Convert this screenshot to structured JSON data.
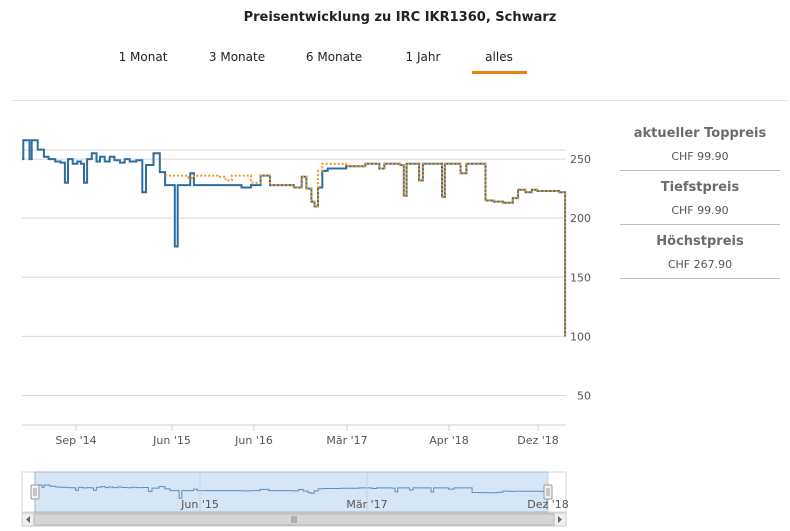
{
  "title": "Preisentwicklung zu IRC IKR1360, Schwarz",
  "tabs": [
    {
      "label": "1 Monat",
      "active": false
    },
    {
      "label": "3 Monate",
      "active": false
    },
    {
      "label": "6 Monate",
      "active": false
    },
    {
      "label": "1 Jahr",
      "active": false
    },
    {
      "label": "alles",
      "active": true
    }
  ],
  "colors": {
    "accent": "#e8820c",
    "series_blue": "#2b6f9e",
    "series_orange": "#f7941d",
    "navigator_fill": "#d6e6f5"
  },
  "panel": [
    {
      "heading": "aktueller Toppreis",
      "value": "CHF 99.90"
    },
    {
      "heading": "Tiefstpreis",
      "value": "CHF 99.90"
    },
    {
      "heading": "Höchstpreis",
      "value": "CHF 267.90"
    }
  ],
  "chart_data": {
    "type": "line",
    "title": "",
    "xlabel": "",
    "ylabel": "",
    "ylim": [
      25,
      300
    ],
    "yticks": [
      250,
      200,
      150,
      100,
      50
    ],
    "xticks": [
      "Sep '14",
      "Jun '15",
      "Jun '16",
      "Mär '17",
      "Apr '18",
      "Dez '18"
    ],
    "x_range": [
      "2014-05-01",
      "2019-02-01"
    ],
    "grid": true,
    "legend": "none",
    "series": [
      {
        "style": "step",
        "color": "#2b6f9e",
        "points": [
          [
            "2014-05-01",
            250
          ],
          [
            "2014-05-05",
            266
          ],
          [
            "2014-05-25",
            250
          ],
          [
            "2014-06-01",
            266
          ],
          [
            "2014-06-20",
            258
          ],
          [
            "2014-07-10",
            252
          ],
          [
            "2014-07-25",
            250
          ],
          [
            "2014-08-15",
            248
          ],
          [
            "2014-09-01",
            247
          ],
          [
            "2014-09-15",
            230
          ],
          [
            "2014-09-25",
            250
          ],
          [
            "2014-10-10",
            246
          ],
          [
            "2014-10-25",
            248
          ],
          [
            "2014-11-05",
            246
          ],
          [
            "2014-11-15",
            230
          ],
          [
            "2014-11-25",
            250
          ],
          [
            "2014-12-10",
            255
          ],
          [
            "2014-12-25",
            248
          ],
          [
            "2015-01-05",
            252
          ],
          [
            "2015-01-20",
            248
          ],
          [
            "2015-02-05",
            252
          ],
          [
            "2015-02-20",
            249
          ],
          [
            "2015-03-10",
            247
          ],
          [
            "2015-03-25",
            250
          ],
          [
            "2015-04-10",
            248
          ],
          [
            "2015-05-01",
            249
          ],
          [
            "2015-05-20",
            222
          ],
          [
            "2015-06-01",
            245
          ],
          [
            "2015-06-25",
            255
          ],
          [
            "2015-07-15",
            239
          ],
          [
            "2015-08-01",
            228
          ],
          [
            "2015-09-01",
            176
          ],
          [
            "2015-09-10",
            228
          ],
          [
            "2015-10-20",
            238
          ],
          [
            "2015-11-01",
            228
          ],
          [
            "2015-12-01",
            228
          ],
          [
            "2016-01-01",
            228
          ],
          [
            "2016-02-01",
            228
          ],
          [
            "2016-03-01",
            228
          ],
          [
            "2016-04-01",
            226
          ],
          [
            "2016-05-01",
            228
          ],
          [
            "2016-06-01",
            236
          ],
          [
            "2016-07-01",
            228
          ],
          [
            "2016-08-01",
            228
          ],
          [
            "2016-09-15",
            226
          ],
          [
            "2016-10-10",
            235
          ],
          [
            "2016-10-25",
            225
          ],
          [
            "2016-11-10",
            214
          ],
          [
            "2016-11-20",
            210
          ],
          [
            "2016-12-01",
            226
          ],
          [
            "2016-12-15",
            240
          ],
          [
            "2017-01-01",
            242
          ],
          [
            "2017-03-01",
            244
          ],
          [
            "2017-05-01",
            246
          ],
          [
            "2017-06-15",
            242
          ],
          [
            "2017-07-01",
            246
          ],
          [
            "2017-08-20",
            245
          ],
          [
            "2017-09-01",
            219
          ],
          [
            "2017-09-10",
            246
          ],
          [
            "2017-10-20",
            232
          ],
          [
            "2017-11-01",
            246
          ],
          [
            "2017-12-01",
            246
          ],
          [
            "2018-01-01",
            218
          ],
          [
            "2018-01-10",
            246
          ],
          [
            "2018-02-01",
            246
          ],
          [
            "2018-03-01",
            238
          ],
          [
            "2018-03-20",
            246
          ],
          [
            "2018-04-15",
            246
          ],
          [
            "2018-05-20",
            215
          ],
          [
            "2018-06-15",
            214
          ],
          [
            "2018-07-15",
            213
          ],
          [
            "2018-08-15",
            217
          ],
          [
            "2018-09-01",
            224
          ],
          [
            "2018-09-25",
            222
          ],
          [
            "2018-10-15",
            224
          ],
          [
            "2018-11-01",
            223
          ],
          [
            "2018-12-01",
            223
          ],
          [
            "2018-12-20",
            223
          ],
          [
            "2019-01-10",
            222
          ],
          [
            "2019-01-28",
            222
          ],
          [
            "2019-01-29",
            100
          ]
        ]
      },
      {
        "style": "step",
        "color": "#f7941d",
        "dashed": true,
        "points": [
          [
            "2015-08-01",
            236
          ],
          [
            "2015-10-15",
            234
          ],
          [
            "2015-11-01",
            236
          ],
          [
            "2016-01-15",
            235
          ],
          [
            "2016-02-10",
            232
          ],
          [
            "2016-03-01",
            236
          ],
          [
            "2016-05-01",
            230
          ],
          [
            "2016-06-01",
            236
          ],
          [
            "2016-07-01",
            228
          ],
          [
            "2016-08-01",
            228
          ],
          [
            "2016-09-15",
            226
          ],
          [
            "2016-10-10",
            235
          ],
          [
            "2016-10-25",
            225
          ],
          [
            "2016-11-10",
            214
          ],
          [
            "2016-11-20",
            210
          ],
          [
            "2016-12-01",
            240
          ],
          [
            "2016-12-15",
            246
          ],
          [
            "2017-01-01",
            246
          ],
          [
            "2017-03-01",
            244
          ],
          [
            "2017-05-01",
            246
          ],
          [
            "2017-06-15",
            242
          ],
          [
            "2017-07-01",
            246
          ],
          [
            "2017-08-20",
            245
          ],
          [
            "2017-09-01",
            219
          ],
          [
            "2017-09-10",
            246
          ],
          [
            "2017-10-20",
            232
          ],
          [
            "2017-11-01",
            246
          ],
          [
            "2017-12-01",
            246
          ],
          [
            "2018-01-01",
            218
          ],
          [
            "2018-01-10",
            246
          ],
          [
            "2018-02-01",
            246
          ],
          [
            "2018-03-01",
            238
          ],
          [
            "2018-03-20",
            246
          ],
          [
            "2018-04-15",
            246
          ],
          [
            "2018-05-20",
            215
          ],
          [
            "2018-06-15",
            214
          ],
          [
            "2018-07-15",
            213
          ],
          [
            "2018-08-15",
            217
          ],
          [
            "2018-09-01",
            224
          ],
          [
            "2018-09-25",
            222
          ],
          [
            "2018-10-15",
            224
          ],
          [
            "2018-11-01",
            223
          ],
          [
            "2018-12-01",
            223
          ],
          [
            "2018-12-20",
            223
          ],
          [
            "2019-01-10",
            222
          ],
          [
            "2019-01-28",
            222
          ],
          [
            "2019-01-29",
            100
          ]
        ]
      }
    ],
    "navigator": {
      "xticks": [
        "Jun '15",
        "Mär '17",
        "Dez '18"
      ]
    }
  }
}
